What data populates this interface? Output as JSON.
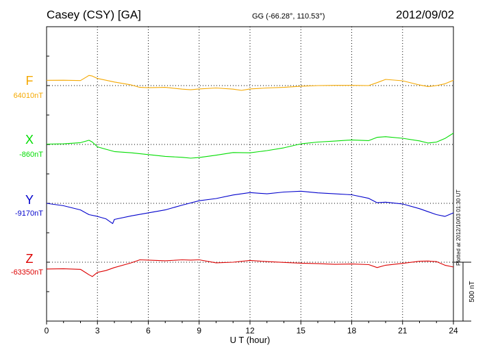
{
  "header": {
    "station": "Casey (CSY)  [GA]",
    "coords": "GG (-66.28°, 110.53°)",
    "date": "2012/09/02"
  },
  "footer": {
    "plotted": "Plotted at 2012/10/03 01:30 UT"
  },
  "scale_label": "500 nT",
  "colors": {
    "F": "#f5a800",
    "X": "#00dd00",
    "Y": "#0000cc",
    "Z": "#dd0000"
  },
  "chart_data": {
    "type": "line",
    "title": "Casey (CSY)  [GA]",
    "xlabel": "U T (hour)",
    "ylabel": "",
    "xlim": [
      0,
      24
    ],
    "x_ticks": [
      0,
      3,
      6,
      9,
      12,
      15,
      18,
      21,
      24
    ],
    "grid": true,
    "scale_bar_nT": 500,
    "series": [
      {
        "name": "F",
        "baseline_label": "64010nT",
        "baseline": 64010,
        "color": "#f5a800",
        "x": [
          0,
          1,
          2,
          2.5,
          2.7,
          3,
          4,
          5,
          5.5,
          6,
          7,
          8,
          8.5,
          9,
          10,
          11,
          11.5,
          12,
          13,
          14,
          15,
          16,
          17,
          18,
          19,
          19.5,
          20,
          21,
          22,
          22.5,
          23,
          23.5,
          24
        ],
        "y": [
          64054,
          64055,
          64052,
          64095,
          64090,
          64070,
          64040,
          64015,
          63995,
          63992,
          63995,
          63980,
          63975,
          63982,
          63990,
          63980,
          63970,
          63982,
          63990,
          63995,
          64005,
          64010,
          64012,
          64012,
          64010,
          64035,
          64062,
          64050,
          64015,
          64002,
          64010,
          64025,
          64055
        ]
      },
      {
        "name": "X",
        "baseline_label": "-860nT",
        "baseline": -860,
        "color": "#00dd00",
        "x": [
          0,
          1,
          2,
          2.5,
          2.7,
          3,
          3.5,
          4,
          5,
          6,
          7,
          8,
          8.5,
          9,
          10,
          11,
          12,
          13,
          14,
          15,
          16,
          17,
          18,
          19,
          19.5,
          20,
          21,
          22,
          22.5,
          23,
          23.5,
          24
        ],
        "y": [
          -857,
          -855,
          -845,
          -825,
          -840,
          -880,
          -900,
          -920,
          -930,
          -945,
          -960,
          -968,
          -975,
          -970,
          -950,
          -928,
          -930,
          -912,
          -888,
          -855,
          -840,
          -832,
          -822,
          -828,
          -800,
          -795,
          -808,
          -830,
          -848,
          -840,
          -810,
          -765
        ]
      },
      {
        "name": "Y",
        "baseline_label": "-9170nT",
        "baseline": -9170,
        "color": "#0000cc",
        "x": [
          0,
          1,
          2,
          2.5,
          3,
          3.5,
          3.9,
          4,
          5,
          6,
          7,
          8,
          9,
          10,
          11,
          12,
          13,
          14,
          15,
          16,
          17,
          18,
          19,
          19.5,
          20,
          21,
          22,
          22.5,
          23,
          23.5,
          24
        ],
        "y": [
          -9170,
          -9190,
          -9225,
          -9265,
          -9280,
          -9300,
          -9340,
          -9305,
          -9275,
          -9250,
          -9225,
          -9185,
          -9148,
          -9130,
          -9100,
          -9080,
          -9090,
          -9075,
          -9068,
          -9082,
          -9090,
          -9098,
          -9128,
          -9165,
          -9160,
          -9175,
          -9215,
          -9240,
          -9265,
          -9280,
          -9250
        ]
      },
      {
        "name": "Z",
        "baseline_label": "-63350nT",
        "baseline": -63350,
        "color": "#dd0000",
        "x": [
          0,
          1,
          2,
          2.5,
          2.7,
          3,
          3.5,
          4,
          5,
          5.5,
          6,
          7,
          8,
          8.5,
          9,
          10,
          11,
          12,
          13,
          14,
          15,
          16,
          17,
          18,
          19,
          19.5,
          20,
          21,
          22,
          22.5,
          23,
          23.5,
          24
        ],
        "y": [
          -63407,
          -63405,
          -63410,
          -63455,
          -63470,
          -63435,
          -63420,
          -63395,
          -63355,
          -63330,
          -63332,
          -63338,
          -63330,
          -63332,
          -63330,
          -63355,
          -63350,
          -63335,
          -63345,
          -63352,
          -63358,
          -63362,
          -63368,
          -63365,
          -63370,
          -63395,
          -63375,
          -63360,
          -63342,
          -63340,
          -63345,
          -63375,
          -63390
        ]
      }
    ]
  }
}
